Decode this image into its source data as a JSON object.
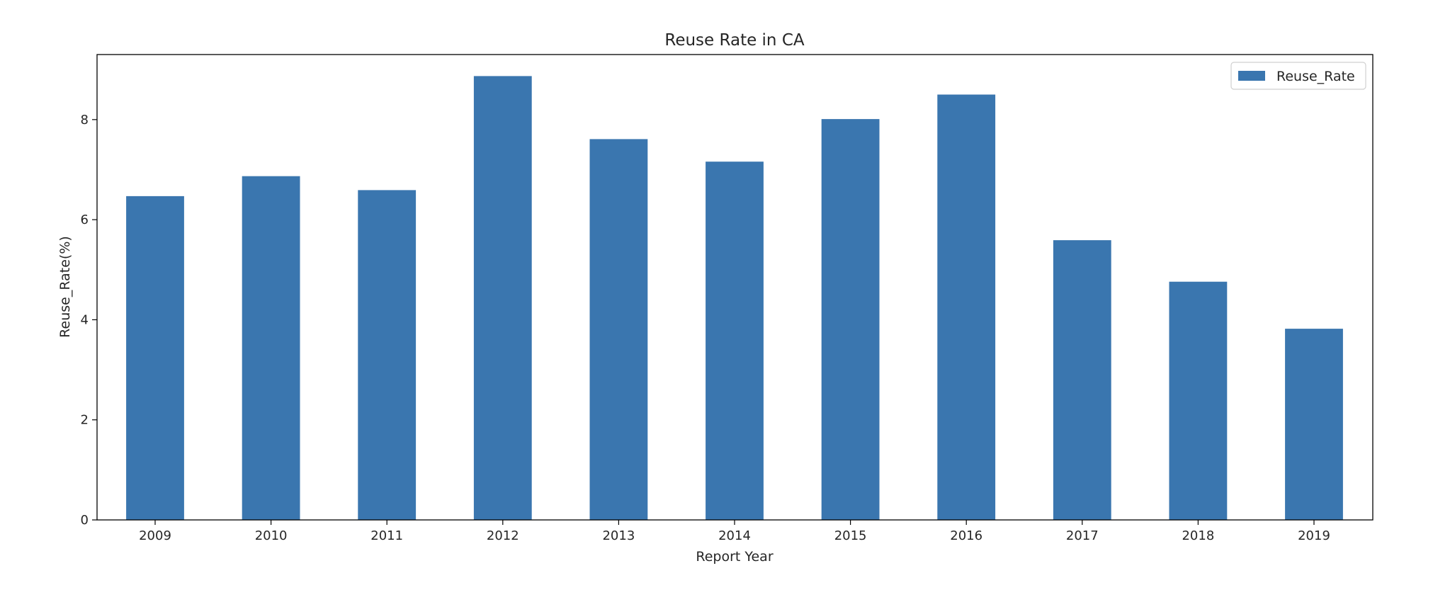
{
  "chart_data": {
    "type": "bar",
    "title": "Reuse Rate in CA",
    "xlabel": "Report Year",
    "ylabel": "Reuse_Rate(%)",
    "categories": [
      "2009",
      "2010",
      "2011",
      "2012",
      "2013",
      "2014",
      "2015",
      "2016",
      "2017",
      "2018",
      "2019"
    ],
    "series": [
      {
        "name": "Reuse_Rate",
        "color": "#3a76af",
        "values": [
          6.47,
          6.87,
          6.59,
          8.87,
          7.61,
          7.16,
          8.01,
          8.5,
          5.59,
          4.76,
          3.82
        ]
      }
    ],
    "ylim": [
      0,
      9.3
    ],
    "yticks": [
      0,
      2,
      4,
      6,
      8
    ],
    "grid": false,
    "legend_position": "top-right"
  }
}
